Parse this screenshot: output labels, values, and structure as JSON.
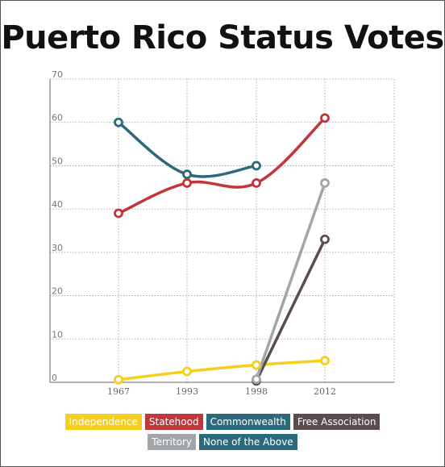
{
  "title": "Puerto Rico Status Votes",
  "colors": {
    "independence": "#f6cf1a",
    "statehood": "#c1363a",
    "commonwealth": "#2c6a7b",
    "free_association": "#5b4c4f",
    "territory": "#a3a6a8",
    "none_of_the_above": "#2c6a7b"
  },
  "chart_data": {
    "type": "line",
    "title": "Puerto Rico Status Votes",
    "xlabel": "",
    "ylabel": "",
    "x": [
      "1967",
      "1993",
      "1998",
      "2012"
    ],
    "ylim": [
      0,
      70
    ],
    "yticks": [
      0,
      10,
      20,
      30,
      40,
      50,
      60,
      70
    ],
    "grid": true,
    "legend_position": "bottom",
    "series": [
      {
        "name": "Independence",
        "color": "#f6cf1a",
        "values": [
          0.6,
          2.5,
          4.0,
          5.0
        ]
      },
      {
        "name": "Statehood",
        "color": "#c1363a",
        "values": [
          39,
          46,
          46,
          61
        ]
      },
      {
        "name": "Commonwealth",
        "color": "#2c6a7b",
        "values": [
          60,
          48,
          50,
          null
        ]
      },
      {
        "name": "Free Association",
        "color": "#5b4c4f",
        "values": [
          null,
          null,
          0.3,
          33
        ]
      },
      {
        "name": "Territory",
        "color": "#a3a6a8",
        "values": [
          null,
          null,
          0.7,
          46
        ]
      },
      {
        "name": "None of the Above",
        "color": "#2c6a7b",
        "values": [
          null,
          null,
          null,
          null
        ]
      }
    ]
  },
  "legend": {
    "row1": [
      "Independence",
      "Statehood",
      "Commonwealth",
      "Free Association"
    ],
    "row2": [
      "Territory",
      "None of the Above"
    ]
  }
}
